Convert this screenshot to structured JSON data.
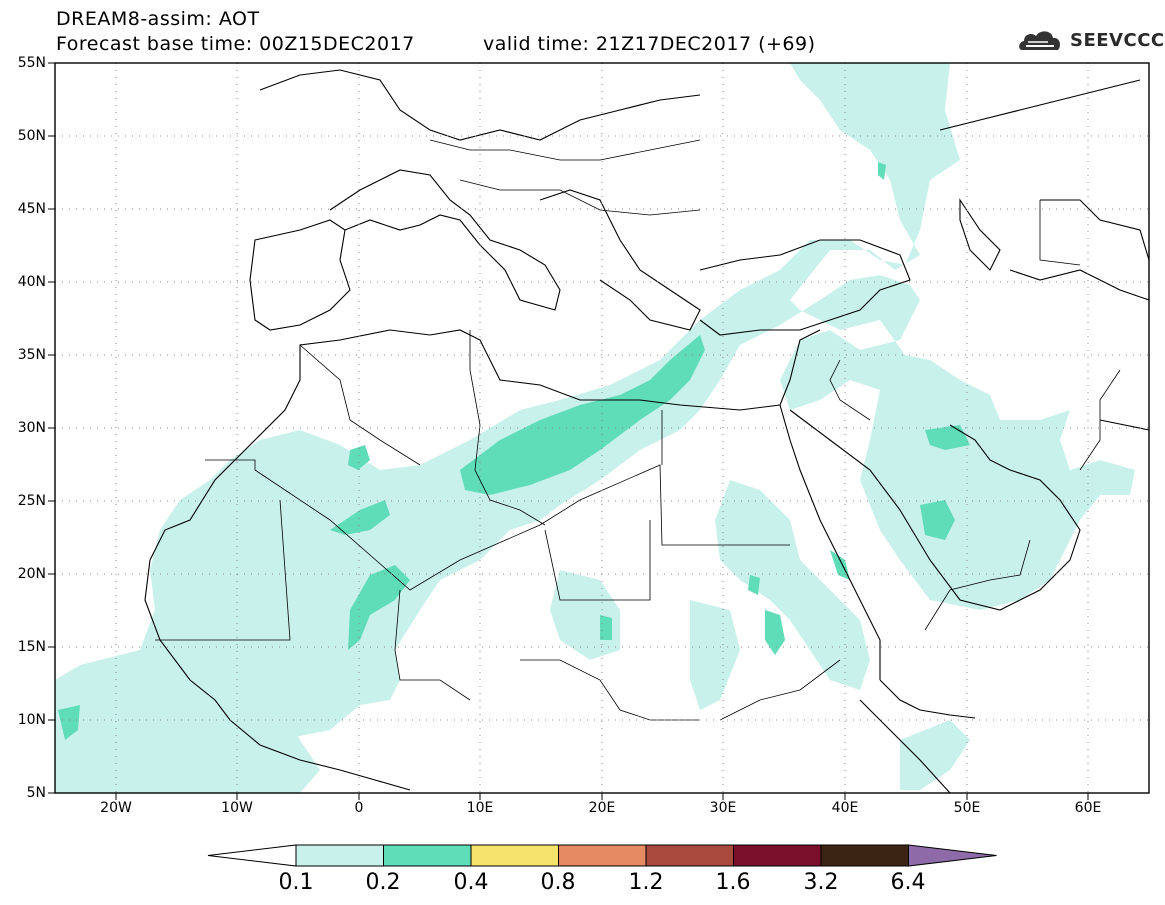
{
  "header": {
    "title": "DREAM8-assim: AOT",
    "base_time": "Forecast base time: 00Z15DEC2017",
    "valid_time": "valid time: 21Z17DEC2017 (+69)",
    "logo_text": "SEEVCCC"
  },
  "map": {
    "lat_labels": [
      "55N",
      "50N",
      "45N",
      "40N",
      "35N",
      "30N",
      "25N",
      "20N",
      "15N",
      "10N",
      "5N"
    ],
    "lon_labels": [
      "20W",
      "10W",
      "0",
      "10E",
      "20E",
      "30E",
      "40E",
      "50E",
      "60E"
    ],
    "lat_range": [
      5,
      55
    ],
    "lon_range": [
      -25,
      65
    ],
    "grid": "dotted"
  },
  "colorbar": {
    "labels": [
      "0.1",
      "0.2",
      "0.4",
      "0.8",
      "1.2",
      "1.6",
      "3.2",
      "6.4"
    ],
    "colors": [
      "#ffffff",
      "#c9f1ec",
      "#5fdcb8",
      "#f5e36b",
      "#e58a63",
      "#a9483c",
      "#7a0f2b",
      "#3b2414",
      "#8e6aa8"
    ]
  }
}
